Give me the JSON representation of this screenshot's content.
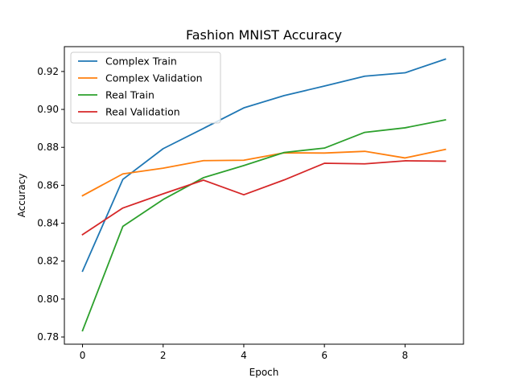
{
  "chart_data": {
    "type": "line",
    "title": "Fashion MNIST Accuracy",
    "xlabel": "Epoch",
    "ylabel": "Accuracy",
    "x": [
      0,
      1,
      2,
      3,
      4,
      5,
      6,
      7,
      8,
      9
    ],
    "xlim": [
      -0.45,
      9.45
    ],
    "ylim": [
      0.7762,
      0.9331
    ],
    "x_ticks": [
      0,
      2,
      4,
      6,
      8
    ],
    "x_tick_labels": [
      "0",
      "2",
      "4",
      "6",
      "8"
    ],
    "y_ticks": [
      0.78,
      0.8,
      0.82,
      0.84,
      0.86,
      0.88,
      0.9,
      0.92
    ],
    "y_tick_labels": [
      "0.78",
      "0.80",
      "0.82",
      "0.84",
      "0.86",
      "0.88",
      "0.90",
      "0.92"
    ],
    "grid": false,
    "legend_position": "top-left",
    "series": [
      {
        "name": "Complex Train",
        "color": "#1f77b4",
        "values": [
          0.8147,
          0.8631,
          0.8793,
          0.89,
          0.9008,
          0.9073,
          0.9123,
          0.9175,
          0.9193,
          0.9265
        ]
      },
      {
        "name": "Complex Validation",
        "color": "#ff7f0e",
        "values": [
          0.8545,
          0.866,
          0.869,
          0.873,
          0.8732,
          0.8771,
          0.877,
          0.8779,
          0.8744,
          0.8789
        ]
      },
      {
        "name": "Real Train",
        "color": "#2ca02c",
        "values": [
          0.7833,
          0.8383,
          0.8525,
          0.864,
          0.8704,
          0.8773,
          0.8796,
          0.8879,
          0.8903,
          0.8945
        ]
      },
      {
        "name": "Real Validation",
        "color": "#d62728",
        "values": [
          0.834,
          0.848,
          0.8555,
          0.8627,
          0.855,
          0.8628,
          0.8716,
          0.8713,
          0.8729,
          0.8727
        ]
      }
    ]
  }
}
